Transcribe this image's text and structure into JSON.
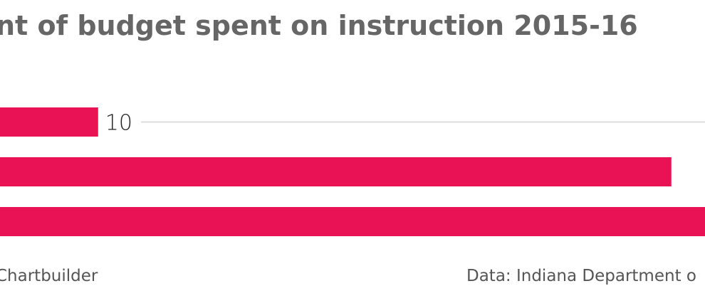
{
  "chart_data": {
    "type": "bar",
    "orientation": "horizontal",
    "title": "nt of budget spent on instruction 2015-16",
    "values": [
      10,
      62,
      66
    ],
    "color": "#e91255",
    "credit": "Chartbuilder",
    "source": "Data: Indiana Department o"
  }
}
